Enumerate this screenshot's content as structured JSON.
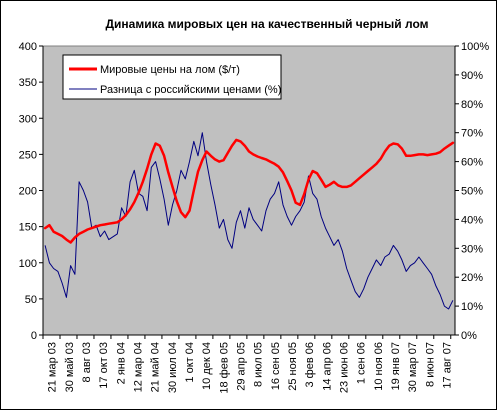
{
  "chart_data": {
    "type": "line",
    "title": "Динамика мировых цен на качественный черный лом",
    "xlabel": "",
    "ylabel": "",
    "ylim": [
      0,
      400
    ],
    "y2lim": [
      0,
      100
    ],
    "y_ticks": [
      "0",
      "50",
      "100",
      "150",
      "200",
      "250",
      "300",
      "350",
      "400"
    ],
    "y2_ticks": [
      "0%",
      "10%",
      "20%",
      "30%",
      "40%",
      "50%",
      "60%",
      "70%",
      "80%",
      "90%",
      "100%"
    ],
    "x_tick_labels": [
      "21 мар 03",
      "30 май 03",
      "8 авг 03",
      "17 окт 03",
      "2 янв 04",
      "12 мар 04",
      "21 май 04",
      "30 июл 04",
      "1 окт 04",
      "10 дек 04",
      "18 фев 05",
      "29 апр 05",
      "8 июл 05",
      "16 сен 05",
      "25 ноя 05",
      "3 фев 06",
      "14 апр 06",
      "23 июн 06",
      "1 сен 06",
      "10 ноя 06",
      "19 янв 07",
      "30 мар 07",
      "8 июн 07",
      "17 авг 07"
    ],
    "x_count": 97,
    "grid": false,
    "legend_position": "top-left",
    "plot_background": "#c0c0c0",
    "series": [
      {
        "name": "Мировые цены на лом ($/т)",
        "axis": "left",
        "color": "#ff0000",
        "points": [
          [
            0,
            148
          ],
          [
            1,
            152
          ],
          [
            2,
            143
          ],
          [
            3,
            140
          ],
          [
            4,
            137
          ],
          [
            5,
            132
          ],
          [
            6,
            128
          ],
          [
            7,
            135
          ],
          [
            8,
            140
          ],
          [
            9,
            143
          ],
          [
            10,
            146
          ],
          [
            11,
            148
          ],
          [
            12,
            150
          ],
          [
            13,
            152
          ],
          [
            14,
            153
          ],
          [
            15,
            154
          ],
          [
            16,
            155
          ],
          [
            17,
            156
          ],
          [
            18,
            160
          ],
          [
            19,
            166
          ],
          [
            20,
            174
          ],
          [
            21,
            184
          ],
          [
            22,
            197
          ],
          [
            23,
            212
          ],
          [
            24,
            230
          ],
          [
            25,
            250
          ],
          [
            26,
            265
          ],
          [
            27,
            262
          ],
          [
            28,
            248
          ],
          [
            29,
            225
          ],
          [
            30,
            205
          ],
          [
            31,
            185
          ],
          [
            32,
            170
          ],
          [
            33,
            163
          ],
          [
            34,
            172
          ],
          [
            35,
            200
          ],
          [
            36,
            226
          ],
          [
            37,
            242
          ],
          [
            38,
            254
          ],
          [
            39,
            248
          ],
          [
            40,
            243
          ],
          [
            41,
            240
          ],
          [
            42,
            242
          ],
          [
            43,
            252
          ],
          [
            44,
            262
          ],
          [
            45,
            270
          ],
          [
            46,
            268
          ],
          [
            47,
            262
          ],
          [
            48,
            254
          ],
          [
            49,
            250
          ],
          [
            50,
            247
          ],
          [
            51,
            245
          ],
          [
            52,
            243
          ],
          [
            53,
            240
          ],
          [
            54,
            237
          ],
          [
            55,
            233
          ],
          [
            56,
            225
          ],
          [
            57,
            213
          ],
          [
            58,
            200
          ],
          [
            59,
            183
          ],
          [
            60,
            180
          ],
          [
            61,
            195
          ],
          [
            62,
            215
          ],
          [
            63,
            227
          ],
          [
            64,
            224
          ],
          [
            65,
            215
          ],
          [
            66,
            205
          ],
          [
            67,
            208
          ],
          [
            68,
            212
          ],
          [
            69,
            207
          ],
          [
            70,
            205
          ],
          [
            71,
            205
          ],
          [
            72,
            207
          ],
          [
            73,
            212
          ],
          [
            74,
            217
          ],
          [
            75,
            222
          ],
          [
            76,
            227
          ],
          [
            77,
            232
          ],
          [
            78,
            237
          ],
          [
            79,
            244
          ],
          [
            80,
            254
          ],
          [
            81,
            262
          ],
          [
            82,
            265
          ],
          [
            83,
            264
          ],
          [
            84,
            258
          ],
          [
            85,
            248
          ],
          [
            86,
            248
          ],
          [
            87,
            249
          ],
          [
            88,
            250
          ],
          [
            89,
            250
          ],
          [
            90,
            249
          ],
          [
            91,
            250
          ],
          [
            92,
            251
          ],
          [
            93,
            253
          ],
          [
            94,
            258
          ],
          [
            95,
            262
          ],
          [
            96,
            266
          ]
        ]
      },
      {
        "name": "Разница с российскими ценами (%)",
        "axis": "right",
        "color": "#000080",
        "points": [
          [
            0,
            31
          ],
          [
            1,
            25
          ],
          [
            2,
            23
          ],
          [
            3,
            22
          ],
          [
            4,
            18
          ],
          [
            5,
            13
          ],
          [
            6,
            24
          ],
          [
            7,
            21
          ],
          [
            8,
            53
          ],
          [
            9,
            50
          ],
          [
            10,
            46
          ],
          [
            11,
            37
          ],
          [
            12,
            38
          ],
          [
            13,
            34
          ],
          [
            14,
            36
          ],
          [
            15,
            33
          ],
          [
            16,
            34
          ],
          [
            17,
            35
          ],
          [
            18,
            44
          ],
          [
            19,
            41
          ],
          [
            20,
            53
          ],
          [
            21,
            57
          ],
          [
            22,
            49
          ],
          [
            23,
            48
          ],
          [
            24,
            43
          ],
          [
            25,
            58
          ],
          [
            26,
            60
          ],
          [
            27,
            54
          ],
          [
            28,
            47
          ],
          [
            29,
            38
          ],
          [
            30,
            45
          ],
          [
            31,
            50
          ],
          [
            32,
            57
          ],
          [
            33,
            54
          ],
          [
            34,
            60
          ],
          [
            35,
            67
          ],
          [
            36,
            62
          ],
          [
            37,
            70
          ],
          [
            38,
            60
          ],
          [
            39,
            52
          ],
          [
            40,
            45
          ],
          [
            41,
            37
          ],
          [
            42,
            40
          ],
          [
            43,
            33
          ],
          [
            44,
            30
          ],
          [
            45,
            39
          ],
          [
            46,
            43
          ],
          [
            47,
            37
          ],
          [
            48,
            44
          ],
          [
            49,
            40
          ],
          [
            50,
            38
          ],
          [
            51,
            36
          ],
          [
            52,
            43
          ],
          [
            53,
            47
          ],
          [
            54,
            49
          ],
          [
            55,
            53
          ],
          [
            56,
            45
          ],
          [
            57,
            41
          ],
          [
            58,
            38
          ],
          [
            59,
            41
          ],
          [
            60,
            43
          ],
          [
            61,
            46
          ],
          [
            62,
            55
          ],
          [
            63,
            49
          ],
          [
            64,
            47
          ],
          [
            65,
            41
          ],
          [
            66,
            37
          ],
          [
            67,
            34
          ],
          [
            68,
            31
          ],
          [
            69,
            33
          ],
          [
            70,
            29
          ],
          [
            71,
            23
          ],
          [
            72,
            19
          ],
          [
            73,
            15
          ],
          [
            74,
            13
          ],
          [
            75,
            16
          ],
          [
            76,
            20
          ],
          [
            77,
            23
          ],
          [
            78,
            26
          ],
          [
            79,
            24
          ],
          [
            80,
            27
          ],
          [
            81,
            28
          ],
          [
            82,
            31
          ],
          [
            83,
            29
          ],
          [
            84,
            26
          ],
          [
            85,
            22
          ],
          [
            86,
            24
          ],
          [
            87,
            25
          ],
          [
            88,
            27
          ],
          [
            89,
            25
          ],
          [
            90,
            23
          ],
          [
            91,
            21
          ],
          [
            92,
            17
          ],
          [
            93,
            14
          ],
          [
            94,
            10
          ],
          [
            95,
            9
          ],
          [
            96,
            12
          ]
        ]
      }
    ]
  }
}
